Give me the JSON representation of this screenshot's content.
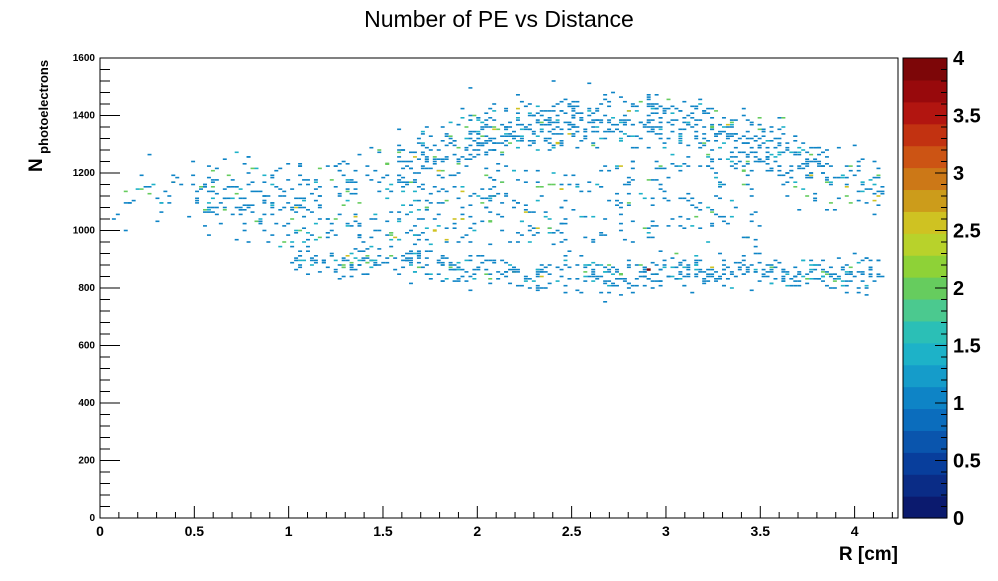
{
  "chart_data": {
    "type": "heatmap",
    "title": "Number of PE vs Distance",
    "xlabel": "R [cm]",
    "ylabel": {
      "main": "N",
      "subscript": "photoelectrons"
    },
    "xlim": [
      0,
      4.23
    ],
    "ylim": [
      0,
      1600
    ],
    "x_ticks": [
      0,
      0.5,
      1,
      1.5,
      2,
      2.5,
      3,
      3.5,
      4
    ],
    "x_tick_labels": [
      "0",
      "0.5",
      "1",
      "1.5",
      "2",
      "2.5",
      "3",
      "3.5",
      "4"
    ],
    "y_ticks": [
      0,
      200,
      400,
      600,
      800,
      1000,
      1200,
      1400,
      1600
    ],
    "y_tick_labels": [
      "0",
      "200",
      "400",
      "600",
      "800",
      "1000",
      "1200",
      "1400",
      "1600"
    ],
    "colorbar": {
      "range": [
        0,
        4
      ],
      "ticks": [
        0,
        0.5,
        1,
        1.5,
        2,
        2.5,
        3,
        3.5,
        4
      ],
      "tick_labels": [
        "0",
        "0.5",
        "1",
        "1.5",
        "2",
        "2.5",
        "3",
        "3.5",
        "4"
      ],
      "palette": [
        "#0b1a6e",
        "#0a2c86",
        "#083e9c",
        "#0a55ad",
        "#0b6dbd",
        "#0e84c6",
        "#159cca",
        "#1db2c8",
        "#2bbfb6",
        "#4bc98f",
        "#66cc5e",
        "#8ed237",
        "#b8d22b",
        "#cfc222",
        "#cc9c1b",
        "#cc7817",
        "#cc5414",
        "#c23211",
        "#b21510",
        "#98090c",
        "#7d0608"
      ]
    },
    "grid": false,
    "legend": "none",
    "annotation": "2D histogram of photoelectron count versus radial distance; cell counts mostly 1 with a few cells reaching 2-4",
    "bin_width": {
      "x": 0.021,
      "y": 8
    },
    "clusters": [
      {
        "x_range": [
          0.05,
          4.2
        ],
        "y_center_range": [
          1130,
          1150
        ],
        "note": "upper band, diagonal sweep from (0.1,1130) toward (4.1,1160)"
      },
      {
        "x_range": [
          1.5,
          3.9
        ],
        "y_center_range": [
          1250,
          1450
        ],
        "note": "upper lobe peaking near (2.5-3.0, 1420)"
      },
      {
        "x_range": [
          1.0,
          4.2
        ],
        "y_center_range": [
          820,
          950
        ],
        "note": "lower band, densest near (2.5-3.3, 850)"
      },
      {
        "x_range": [
          0.6,
          1.6
        ],
        "y_center_range": [
          980,
          1200
        ],
        "note": "left region"
      }
    ],
    "hot_cells": [
      {
        "x": 2.9,
        "y": 865,
        "value": 4
      },
      {
        "x": 1.78,
        "y": 1002,
        "value": 2.5
      },
      {
        "x": 2.43,
        "y": 1307,
        "value": 2.5
      },
      {
        "x": 3.25,
        "y": 1365,
        "value": 2
      },
      {
        "x": 2.77,
        "y": 850,
        "value": 2
      },
      {
        "x": 2.07,
        "y": 1038,
        "value": 2
      },
      {
        "x": 1.53,
        "y": 1232,
        "value": 2
      },
      {
        "x": 3.41,
        "y": 1208,
        "value": 2
      }
    ]
  }
}
